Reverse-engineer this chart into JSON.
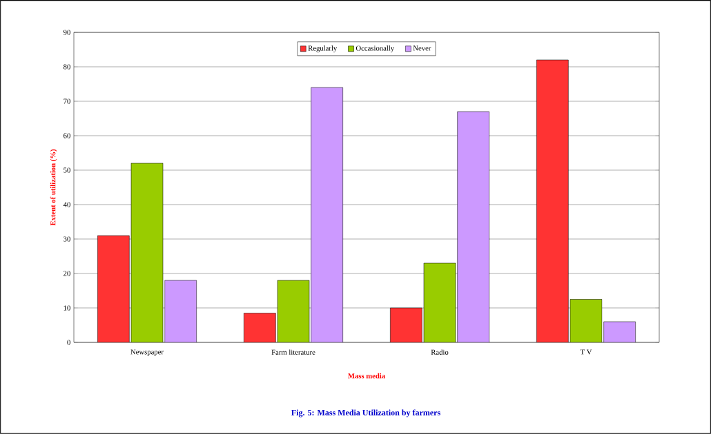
{
  "chart_data": {
    "type": "bar",
    "xlabel": "Mass media",
    "ylabel": "Extent of utilization (%)",
    "categories": [
      "Newspaper",
      "Farm literature",
      "Radio",
      "T V"
    ],
    "series": [
      {
        "name": "Regularly",
        "color": "#ff3333",
        "values": [
          31,
          8.5,
          10,
          82
        ]
      },
      {
        "name": "Occasionally",
        "color": "#99cc00",
        "values": [
          52,
          18,
          23,
          12.5
        ]
      },
      {
        "name": "Never",
        "color": "#cc99ff",
        "values": [
          18,
          74,
          67,
          6
        ]
      }
    ],
    "ylim": [
      0,
      90
    ],
    "yticks": [
      0,
      10,
      20,
      30,
      40,
      50,
      60,
      70,
      80,
      90
    ],
    "grid": "y",
    "legend": "top",
    "annotations": [
      "Fig. 5: Mass Media Utilization by farmers"
    ]
  }
}
